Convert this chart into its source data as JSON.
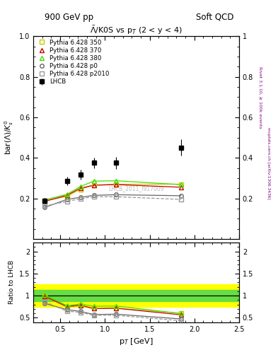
{
  "title_top": "900 GeV pp",
  "title_right": "Soft QCD",
  "plot_title": "$\\bar{\\Lambda}$/K0S vs p$_{T}$ (2 < y < 4)",
  "ylabel_main": "bar($\\Lambda$)/$K^0_s$",
  "ylabel_ratio": "Ratio to LHCB",
  "xlabel": "p$_{T}$ [GeV]",
  "watermark": "LHCB_2011_I917009",
  "right_label1": "Rivet 3.1.10, ≥ 100k events",
  "right_label2": "mcplots.cern.ch [arXiv:1306.3436]",
  "lhcb_x": [
    0.325,
    0.575,
    0.725,
    0.875,
    1.125,
    1.85
  ],
  "lhcb_y": [
    0.188,
    0.285,
    0.318,
    0.375,
    0.375,
    0.45
  ],
  "lhcb_yerr": [
    0.015,
    0.02,
    0.025,
    0.025,
    0.03,
    0.04
  ],
  "py350_x": [
    0.325,
    0.575,
    0.725,
    0.875,
    1.125,
    1.85
  ],
  "py350_y": [
    0.188,
    0.21,
    0.245,
    0.265,
    0.27,
    0.27
  ],
  "py350_color": "#c8c800",
  "py350_label": "Pythia 6.428 350",
  "py370_x": [
    0.325,
    0.575,
    0.725,
    0.875,
    1.125,
    1.85
  ],
  "py370_y": [
    0.185,
    0.215,
    0.25,
    0.265,
    0.268,
    0.255
  ],
  "py370_color": "#cc0000",
  "py370_label": "Pythia 6.428 370",
  "py380_x": [
    0.325,
    0.575,
    0.725,
    0.875,
    1.125,
    1.85
  ],
  "py380_y": [
    0.192,
    0.22,
    0.258,
    0.285,
    0.287,
    0.268
  ],
  "py380_color": "#44dd00",
  "py380_label": "Pythia 6.428 380",
  "pyp0_x": [
    0.325,
    0.575,
    0.725,
    0.875,
    1.125,
    1.85
  ],
  "pyp0_y": [
    0.155,
    0.195,
    0.205,
    0.215,
    0.218,
    0.213
  ],
  "pyp0_color": "#666666",
  "pyp0_label": "Pythia 6.428 p0",
  "pyp2010_x": [
    0.325,
    0.575,
    0.725,
    0.875,
    1.125,
    1.85
  ],
  "pyp2010_y": [
    0.162,
    0.185,
    0.198,
    0.208,
    0.208,
    0.195
  ],
  "pyp2010_color": "#999999",
  "pyp2010_label": "Pythia 6.428 p2010",
  "xlim": [
    0.2,
    2.5
  ],
  "ylim_main": [
    0.0,
    1.0
  ],
  "ylim_ratio": [
    0.4,
    2.2
  ],
  "band_yellow_lo": 0.75,
  "band_yellow_hi": 1.25,
  "band_green_lo": 0.87,
  "band_green_hi": 1.13
}
